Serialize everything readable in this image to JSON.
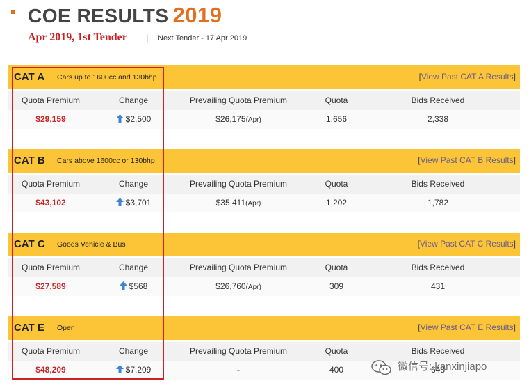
{
  "header": {
    "title": "COE RESULTS",
    "year": "2019",
    "tender": "Apr 2019, 1st Tender",
    "separator": "|",
    "next_tender": "Next Tender - 17 Apr 2019"
  },
  "columns": {
    "quota_premium": "Quota Premium",
    "change": "Change",
    "prevailing": "Prevailing Quota Premium",
    "quota": "Quota",
    "bids": "Bids Received"
  },
  "categories": [
    {
      "name": "CAT A",
      "desc": "Cars up to 1600cc and 130bhp",
      "link": "View Past CAT A Results",
      "premium": "$29,159",
      "change": "$2,500",
      "prevailing": "$26,175",
      "prevailing_suffix": "(Apr)",
      "quota": "1,656",
      "bids": "2,338"
    },
    {
      "name": "CAT B",
      "desc": "Cars above 1600cc or 130bhp",
      "link": "View Past CAT B Results",
      "premium": "$43,102",
      "change": "$3,701",
      "prevailing": "$35,411",
      "prevailing_suffix": "(Apr)",
      "quota": "1,202",
      "bids": "1,782"
    },
    {
      "name": "CAT C",
      "desc": "Goods Vehicle & Bus",
      "link": "View Past CAT C Results",
      "premium": "$27,589",
      "change": "$568",
      "prevailing": "$26,760",
      "prevailing_suffix": "(Apr)",
      "quota": "309",
      "bids": "431"
    },
    {
      "name": "CAT E",
      "desc": "Open",
      "link": "View Past CAT E Results",
      "premium": "$48,209",
      "change": "$7,209",
      "prevailing": "-",
      "prevailing_suffix": "",
      "quota": "400",
      "bids": "648"
    }
  ],
  "watermark": {
    "text": "微信号: kanxinjiapo",
    "icon": "wechat-icon"
  },
  "colors": {
    "accent": "#e07020",
    "bar": "#fcc437",
    "premium": "#cc2222",
    "arrow": "#3a86d4"
  }
}
